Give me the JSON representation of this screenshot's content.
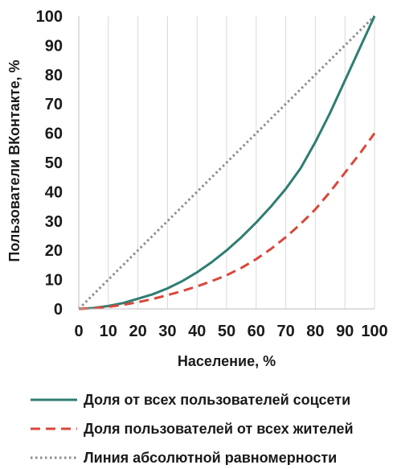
{
  "chart_data": {
    "type": "line",
    "xlabel": "Население, %",
    "ylabel": "Пользователи ВКонтакте, %",
    "xlim": [
      0,
      100
    ],
    "ylim": [
      0,
      100
    ],
    "x_ticks": [
      0,
      10,
      20,
      30,
      40,
      50,
      60,
      70,
      80,
      90,
      100
    ],
    "y_ticks": [
      0,
      10,
      20,
      30,
      40,
      50,
      60,
      70,
      80,
      90,
      100
    ],
    "grid": "vertical",
    "legend_position": "bottom",
    "series": [
      {
        "name": "Доля от всех пользователей соцсети",
        "color": "#2e7d72",
        "style": "solid",
        "x": [
          0,
          5,
          10,
          15,
          20,
          25,
          30,
          35,
          40,
          45,
          50,
          55,
          60,
          65,
          70,
          75,
          80,
          85,
          90,
          95,
          100
        ],
        "y": [
          0,
          0.3,
          1,
          2,
          3.5,
          5,
          7,
          9.5,
          12.5,
          16,
          20,
          24.5,
          29.5,
          35,
          41,
          48,
          57,
          67,
          78,
          89,
          100
        ]
      },
      {
        "name": "Доля пользователей от всех жителей",
        "color": "#d9473b",
        "style": "dashed",
        "x": [
          0,
          5,
          10,
          15,
          20,
          25,
          30,
          35,
          40,
          45,
          50,
          55,
          60,
          65,
          70,
          75,
          80,
          85,
          90,
          95,
          100
        ],
        "y": [
          0,
          0.2,
          0.7,
          1.4,
          2.3,
          3.4,
          4.7,
          6.1,
          7.7,
          9.5,
          11.5,
          14,
          17,
          20.5,
          24.5,
          29,
          34,
          40,
          46.5,
          53,
          60
        ]
      },
      {
        "name": "Линия абсолютной равномерности",
        "color": "#8c8c8c",
        "style": "dotted",
        "x": [
          0,
          100
        ],
        "y": [
          0,
          100
        ]
      }
    ]
  }
}
